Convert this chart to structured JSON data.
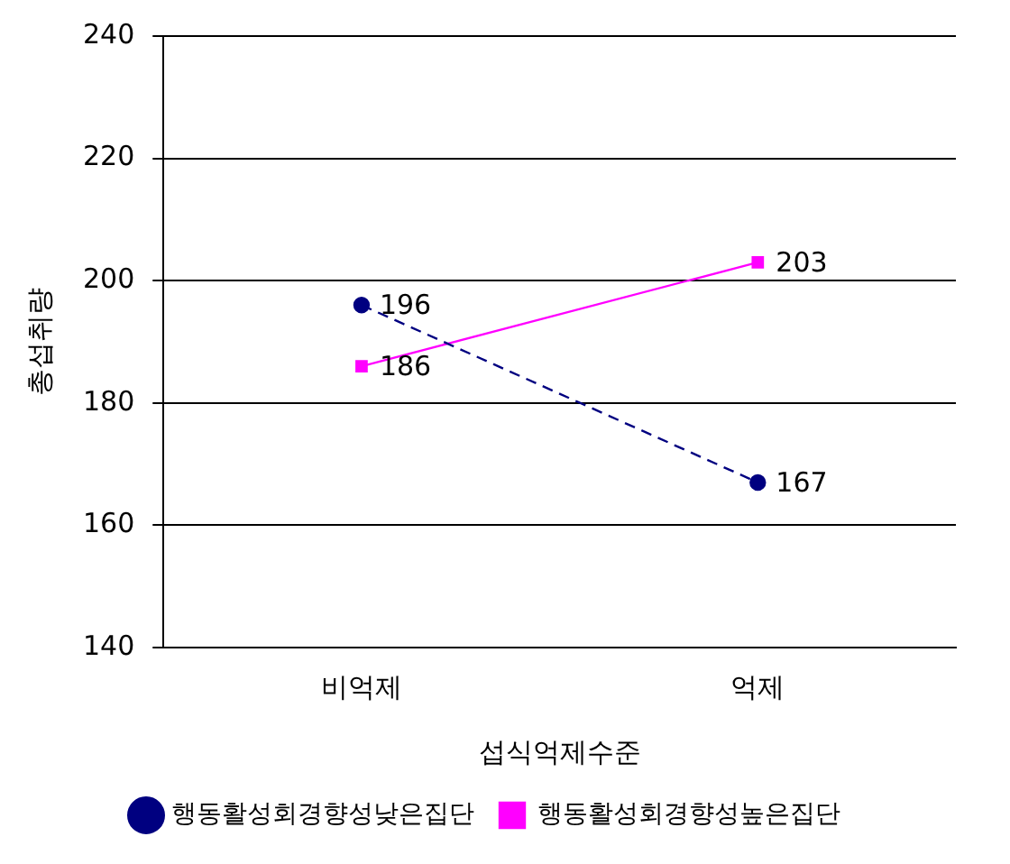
{
  "chart_data": {
    "type": "line",
    "xlabel": "섭식억제수준",
    "ylabel": "총섭취량",
    "categories": [
      "비억제",
      "억제"
    ],
    "series": [
      {
        "name": "행동활성회경향성낮은집단",
        "color": "#000080",
        "values": [
          196,
          167
        ],
        "marker": "circle",
        "line_style": "dashed"
      },
      {
        "name": "행동활성회경향성높은집단",
        "color": "#ff00ff",
        "values": [
          186,
          203
        ],
        "marker": "square",
        "line_style": "solid"
      }
    ],
    "ylim": [
      140,
      240
    ],
    "yticks": [
      140,
      160,
      180,
      200,
      220,
      240
    ],
    "grid": "y",
    "legend": "bottom",
    "data_labels": true
  }
}
